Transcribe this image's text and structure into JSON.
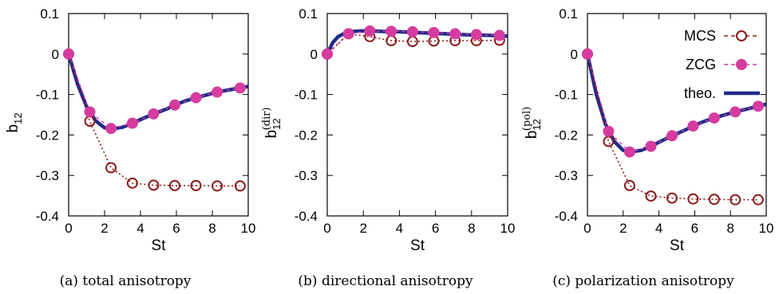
{
  "chart_data": [
    {
      "type": "line",
      "caption": "(a) total anisotropy",
      "xlabel": "St",
      "ylabel": "b",
      "ylabel_sub": "12",
      "ylabel_sup": "",
      "xlim": [
        0,
        10
      ],
      "ylim": [
        -0.4,
        0.1
      ],
      "xticks": [
        "0",
        "2",
        "4",
        "6",
        "8",
        "10"
      ],
      "yticks": [
        "0.1",
        "0",
        "-0.1",
        "-0.2",
        "-0.3",
        "-0.4"
      ],
      "series": [
        {
          "name": "MCS",
          "color": "#8b1a1a",
          "x": [
            0,
            1.18,
            2.36,
            3.55,
            4.73,
            5.91,
            7.09,
            8.27,
            9.55
          ],
          "y": [
            0,
            -0.166,
            -0.281,
            -0.319,
            -0.324,
            -0.325,
            -0.325,
            -0.326,
            -0.326
          ]
        },
        {
          "name": "ZCG",
          "color": "#d63ca0",
          "x": [
            0,
            1.18,
            2.36,
            3.55,
            4.73,
            5.91,
            7.09,
            8.27,
            9.55
          ],
          "y": [
            0,
            -0.143,
            -0.184,
            -0.171,
            -0.148,
            -0.126,
            -0.108,
            -0.094,
            -0.084
          ]
        },
        {
          "name": "theo.",
          "color": "#1f2a8a",
          "x": [
            0,
            0.5,
            1.0,
            1.5,
            2.0,
            2.4,
            3.0,
            3.55,
            4.0,
            4.73,
            5.5,
            5.91,
            6.5,
            7.09,
            7.7,
            8.27,
            9.0,
            9.55,
            10.0
          ],
          "y": [
            0,
            -0.075,
            -0.13,
            -0.165,
            -0.182,
            -0.185,
            -0.181,
            -0.171,
            -0.162,
            -0.148,
            -0.135,
            -0.126,
            -0.116,
            -0.108,
            -0.101,
            -0.094,
            -0.088,
            -0.084,
            -0.08
          ]
        }
      ]
    },
    {
      "type": "line",
      "caption": "(b) directional anisotropy",
      "xlabel": "St",
      "ylabel": "b",
      "ylabel_sub": "12",
      "ylabel_sup": "(dir)",
      "xlim": [
        0,
        10
      ],
      "ylim": [
        -0.4,
        0.1
      ],
      "xticks": [
        "0",
        "2",
        "4",
        "6",
        "8",
        "10"
      ],
      "yticks": [
        "0.1",
        "0",
        "-0.1",
        "-0.2",
        "-0.3",
        "-0.4"
      ],
      "series": [
        {
          "name": "MCS",
          "color": "#8b1a1a",
          "x": [
            0,
            1.18,
            2.36,
            3.55,
            4.73,
            5.91,
            7.09,
            8.27,
            9.55
          ],
          "y": [
            0,
            0.05,
            0.043,
            0.033,
            0.031,
            0.032,
            0.033,
            0.033,
            0.034
          ]
        },
        {
          "name": "ZCG",
          "color": "#d63ca0",
          "x": [
            0,
            1.18,
            2.36,
            3.55,
            4.73,
            5.91,
            7.09,
            8.27,
            9.55
          ],
          "y": [
            0,
            0.05,
            0.057,
            0.056,
            0.055,
            0.053,
            0.05,
            0.048,
            0.046
          ]
        },
        {
          "name": "theo.",
          "color": "#1f2a8a",
          "x": [
            0,
            0.3,
            0.6,
            1.0,
            1.5,
            2.0,
            2.5,
            3.0,
            4.0,
            5.0,
            6.0,
            7.0,
            8.0,
            9.0,
            10.0
          ],
          "y": [
            0,
            0.028,
            0.043,
            0.052,
            0.056,
            0.057,
            0.057,
            0.056,
            0.055,
            0.053,
            0.051,
            0.049,
            0.047,
            0.046,
            0.044
          ]
        }
      ]
    },
    {
      "type": "line",
      "caption": "(c) polarization anisotropy",
      "xlabel": "St",
      "ylabel": "b",
      "ylabel_sub": "12",
      "ylabel_sup": "(pol)",
      "xlim": [
        0,
        10
      ],
      "ylim": [
        -0.4,
        0.1
      ],
      "xticks": [
        "0",
        "2",
        "4",
        "6",
        "8",
        "10"
      ],
      "yticks": [
        "0.1",
        "0",
        "-0.1",
        "-0.2",
        "-0.3",
        "-0.4"
      ],
      "legend_position": "top-right",
      "series": [
        {
          "name": "MCS",
          "color": "#8b1a1a",
          "x": [
            0,
            1.18,
            2.36,
            3.55,
            4.73,
            5.91,
            7.09,
            8.27,
            9.55
          ],
          "y": [
            0,
            -0.216,
            -0.325,
            -0.351,
            -0.356,
            -0.358,
            -0.359,
            -0.36,
            -0.36
          ]
        },
        {
          "name": "ZCG",
          "color": "#d63ca0",
          "x": [
            0,
            1.18,
            2.36,
            3.55,
            4.73,
            5.91,
            7.09,
            8.27,
            9.55
          ],
          "y": [
            0,
            -0.191,
            -0.242,
            -0.228,
            -0.202,
            -0.178,
            -0.158,
            -0.143,
            -0.129
          ]
        },
        {
          "name": "theo.",
          "color": "#1f2a8a",
          "x": [
            0,
            0.5,
            1.0,
            1.5,
            2.0,
            2.4,
            3.0,
            3.55,
            4.0,
            4.73,
            5.5,
            5.91,
            6.5,
            7.09,
            7.7,
            8.27,
            9.0,
            9.55,
            10.0
          ],
          "y": [
            0,
            -0.1,
            -0.172,
            -0.216,
            -0.238,
            -0.242,
            -0.238,
            -0.228,
            -0.218,
            -0.202,
            -0.187,
            -0.178,
            -0.167,
            -0.158,
            -0.15,
            -0.143,
            -0.135,
            -0.129,
            -0.124
          ]
        }
      ]
    }
  ]
}
